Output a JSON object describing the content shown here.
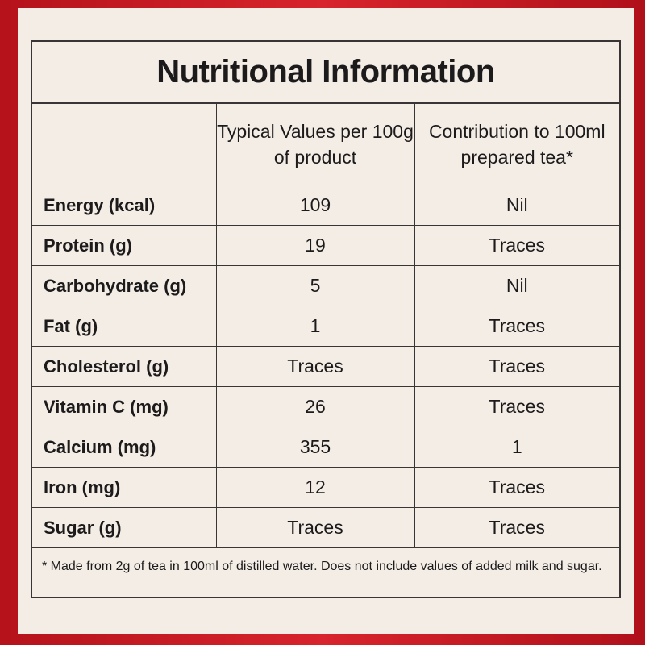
{
  "title": "Nutritional Information",
  "table": {
    "header": [
      "",
      "Typical Values per 100g of product",
      "Contribution to 100ml prepared tea*"
    ],
    "rows": [
      [
        "Energy (kcal)",
        109,
        "Nil"
      ],
      [
        "Protein (g)",
        19,
        "Traces"
      ],
      [
        "Carbohydrate (g)",
        5,
        "Nil"
      ],
      [
        "Fat (g)",
        1,
        "Traces"
      ],
      [
        "Cholesterol (g)",
        "Traces",
        "Traces"
      ],
      [
        "Vitamin C (mg)",
        26,
        "Traces"
      ],
      [
        "Calcium (mg)",
        355,
        1
      ],
      [
        "Iron (mg)",
        12,
        "Traces"
      ],
      [
        "Sugar (g)",
        "Traces",
        "Traces"
      ]
    ]
  },
  "footnote": "* Made from 2g of tea in 100ml of distilled water. Does not include values of added milk and sugar."
}
